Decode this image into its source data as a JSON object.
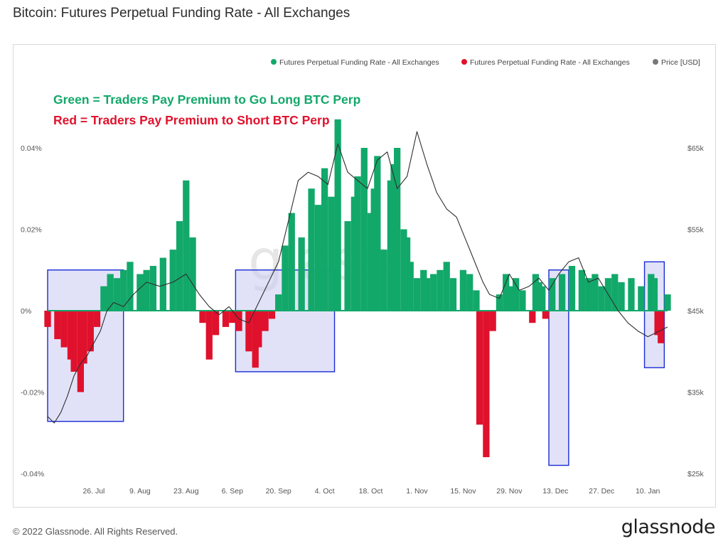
{
  "header": {
    "title": "Bitcoin: Futures Perpetual Funding Rate - All Exchanges"
  },
  "footer": {
    "copyright": "© 2022 Glassnode. All Rights Reserved.",
    "brand": "glassnode"
  },
  "watermark": "glass",
  "colors": {
    "long": "#12a86a",
    "short": "#e0112c",
    "price": "#2e2e2e",
    "highlight_fill": "#c9caf2",
    "highlight_stroke": "#1a2bd6"
  },
  "chart_data": {
    "type": "bar",
    "legend": {
      "placement": "top-right",
      "entries": [
        {
          "label": "Futures Perpetual Funding Rate - All Exchanges",
          "color": "#12a86a"
        },
        {
          "label": "Futures Perpetual Funding Rate - All Exchanges",
          "color": "#e0112c"
        },
        {
          "label": "Price [USD]",
          "color": "#777777"
        }
      ]
    },
    "annotations": [
      {
        "text": "Green = Traders Pay Premium to Go Long BTC Perp",
        "color": "#12a86a"
      },
      {
        "text": "Red = Traders Pay Premium to Short BTC Perp",
        "color": "#e0112c"
      }
    ],
    "y_left": {
      "ticks": [
        "0.04%",
        "0.02%",
        "0%",
        "-0.02%",
        "-0.04%"
      ],
      "values": [
        0.04,
        0.02,
        0,
        -0.02,
        -0.04
      ],
      "range": [
        -0.04,
        0.04
      ]
    },
    "y_right": {
      "ticks": [
        "$65k",
        "$55k",
        "$45k",
        "$35k",
        "$25k"
      ],
      "values": [
        65000,
        55000,
        45000,
        35000,
        25000
      ],
      "range": [
        25000,
        65000
      ]
    },
    "x_ticks": [
      "26. Jul",
      "9. Aug",
      "23. Aug",
      "6. Sep",
      "20. Sep",
      "4. Oct",
      "18. Oct",
      "1. Nov",
      "15. Nov",
      "29. Nov",
      "13. Dec",
      "27. Dec",
      "10. Jan"
    ],
    "x_range_days": [
      -14,
      174
    ],
    "grid": false,
    "funding_rate": {
      "days": [
        -14,
        -11,
        -9,
        -7,
        -6,
        -4,
        -3,
        -1,
        1,
        3,
        5,
        7,
        9,
        11,
        14,
        16,
        18,
        21,
        24,
        26,
        28,
        30,
        33,
        35,
        37,
        40,
        42,
        44,
        47,
        49,
        50,
        52,
        54,
        56,
        58,
        60,
        63,
        66,
        68,
        70,
        72,
        74,
        77,
        79,
        80,
        82,
        84,
        85,
        86,
        88,
        90,
        91,
        92,
        94,
        95,
        96,
        98,
        100,
        101,
        103,
        105,
        107,
        109,
        112,
        114,
        116,
        117,
        119,
        121,
        123,
        125,
        126,
        128,
        130,
        133,
        134,
        135,
        136,
        137,
        139,
        142,
        145,
        148,
        150,
        151,
        152,
        154,
        156,
        158,
        160,
        163,
        166,
        169,
        170,
        171,
        172,
        174
      ],
      "values": [
        -0.004,
        -0.007,
        -0.009,
        -0.012,
        -0.015,
        -0.02,
        -0.013,
        -0.01,
        -0.004,
        0.006,
        0.009,
        0.008,
        0.01,
        0.012,
        0.009,
        0.01,
        0.011,
        0.013,
        0.015,
        0.022,
        0.032,
        0.018,
        -0.003,
        -0.012,
        -0.006,
        -0.004,
        -0.003,
        -0.005,
        -0.01,
        -0.014,
        -0.009,
        -0.005,
        -0.002,
        0.004,
        0.016,
        0.024,
        0.018,
        0.03,
        0.026,
        0.035,
        0.028,
        0.047,
        0.022,
        0.028,
        0.033,
        0.04,
        0.024,
        0.03,
        0.038,
        0.015,
        0.032,
        0.036,
        0.04,
        0.02,
        0.018,
        0.012,
        0.008,
        0.01,
        0.008,
        0.009,
        0.01,
        0.012,
        0.008,
        0.01,
        0.009,
        0.005,
        -0.028,
        -0.036,
        -0.005,
        0.004,
        0.009,
        0.006,
        0.008,
        0.005,
        -0.003,
        0.009,
        0.007,
        0.006,
        -0.002,
        0.008,
        0.009,
        0.011,
        0.01,
        0.008,
        0.007,
        0.009,
        0.006,
        0.008,
        0.009,
        0.007,
        0.008,
        0.006,
        0.009,
        0.008,
        -0.006,
        -0.008,
        0.004
      ]
    },
    "price": {
      "days": [
        -14,
        -12,
        -10,
        -8,
        -6,
        -4,
        -2,
        0,
        2,
        4,
        6,
        9,
        12,
        16,
        20,
        24,
        28,
        32,
        35,
        38,
        41,
        44,
        47,
        50,
        53,
        56,
        59,
        62,
        65,
        68,
        71,
        74,
        77,
        80,
        83,
        86,
        89,
        92,
        95,
        98,
        101,
        104,
        107,
        110,
        113,
        116,
        118,
        120,
        123,
        126,
        129,
        132,
        135,
        138,
        141,
        144,
        147,
        150,
        153,
        156,
        159,
        162,
        165,
        168,
        170,
        172,
        174
      ],
      "values": [
        32000,
        31200,
        32500,
        34500,
        37000,
        38500,
        39500,
        41000,
        42500,
        45000,
        46000,
        45500,
        47000,
        48500,
        48000,
        48500,
        49500,
        47000,
        45500,
        44500,
        45500,
        44000,
        43500,
        46000,
        48500,
        51000,
        56000,
        61000,
        62000,
        61500,
        60500,
        65500,
        62000,
        61000,
        60000,
        63500,
        64500,
        60000,
        61500,
        67000,
        63000,
        59500,
        57500,
        56500,
        53500,
        50500,
        48500,
        47000,
        46500,
        49500,
        47500,
        48000,
        49000,
        47500,
        49500,
        51000,
        51500,
        48500,
        49000,
        47000,
        45000,
        43500,
        42500,
        41800,
        42200,
        42600,
        43000
      ]
    },
    "highlight_boxes": [
      {
        "day_range": [
          -14,
          9
        ],
        "rate_range": [
          -0.0272,
          0.01
        ]
      },
      {
        "day_range": [
          43,
          73
        ],
        "rate_range": [
          -0.015,
          0.01
        ]
      },
      {
        "day_range": [
          138,
          144
        ],
        "rate_range": [
          -0.038,
          0.01
        ]
      },
      {
        "day_range": [
          167,
          173
        ],
        "rate_range": [
          -0.014,
          0.012
        ]
      }
    ]
  }
}
